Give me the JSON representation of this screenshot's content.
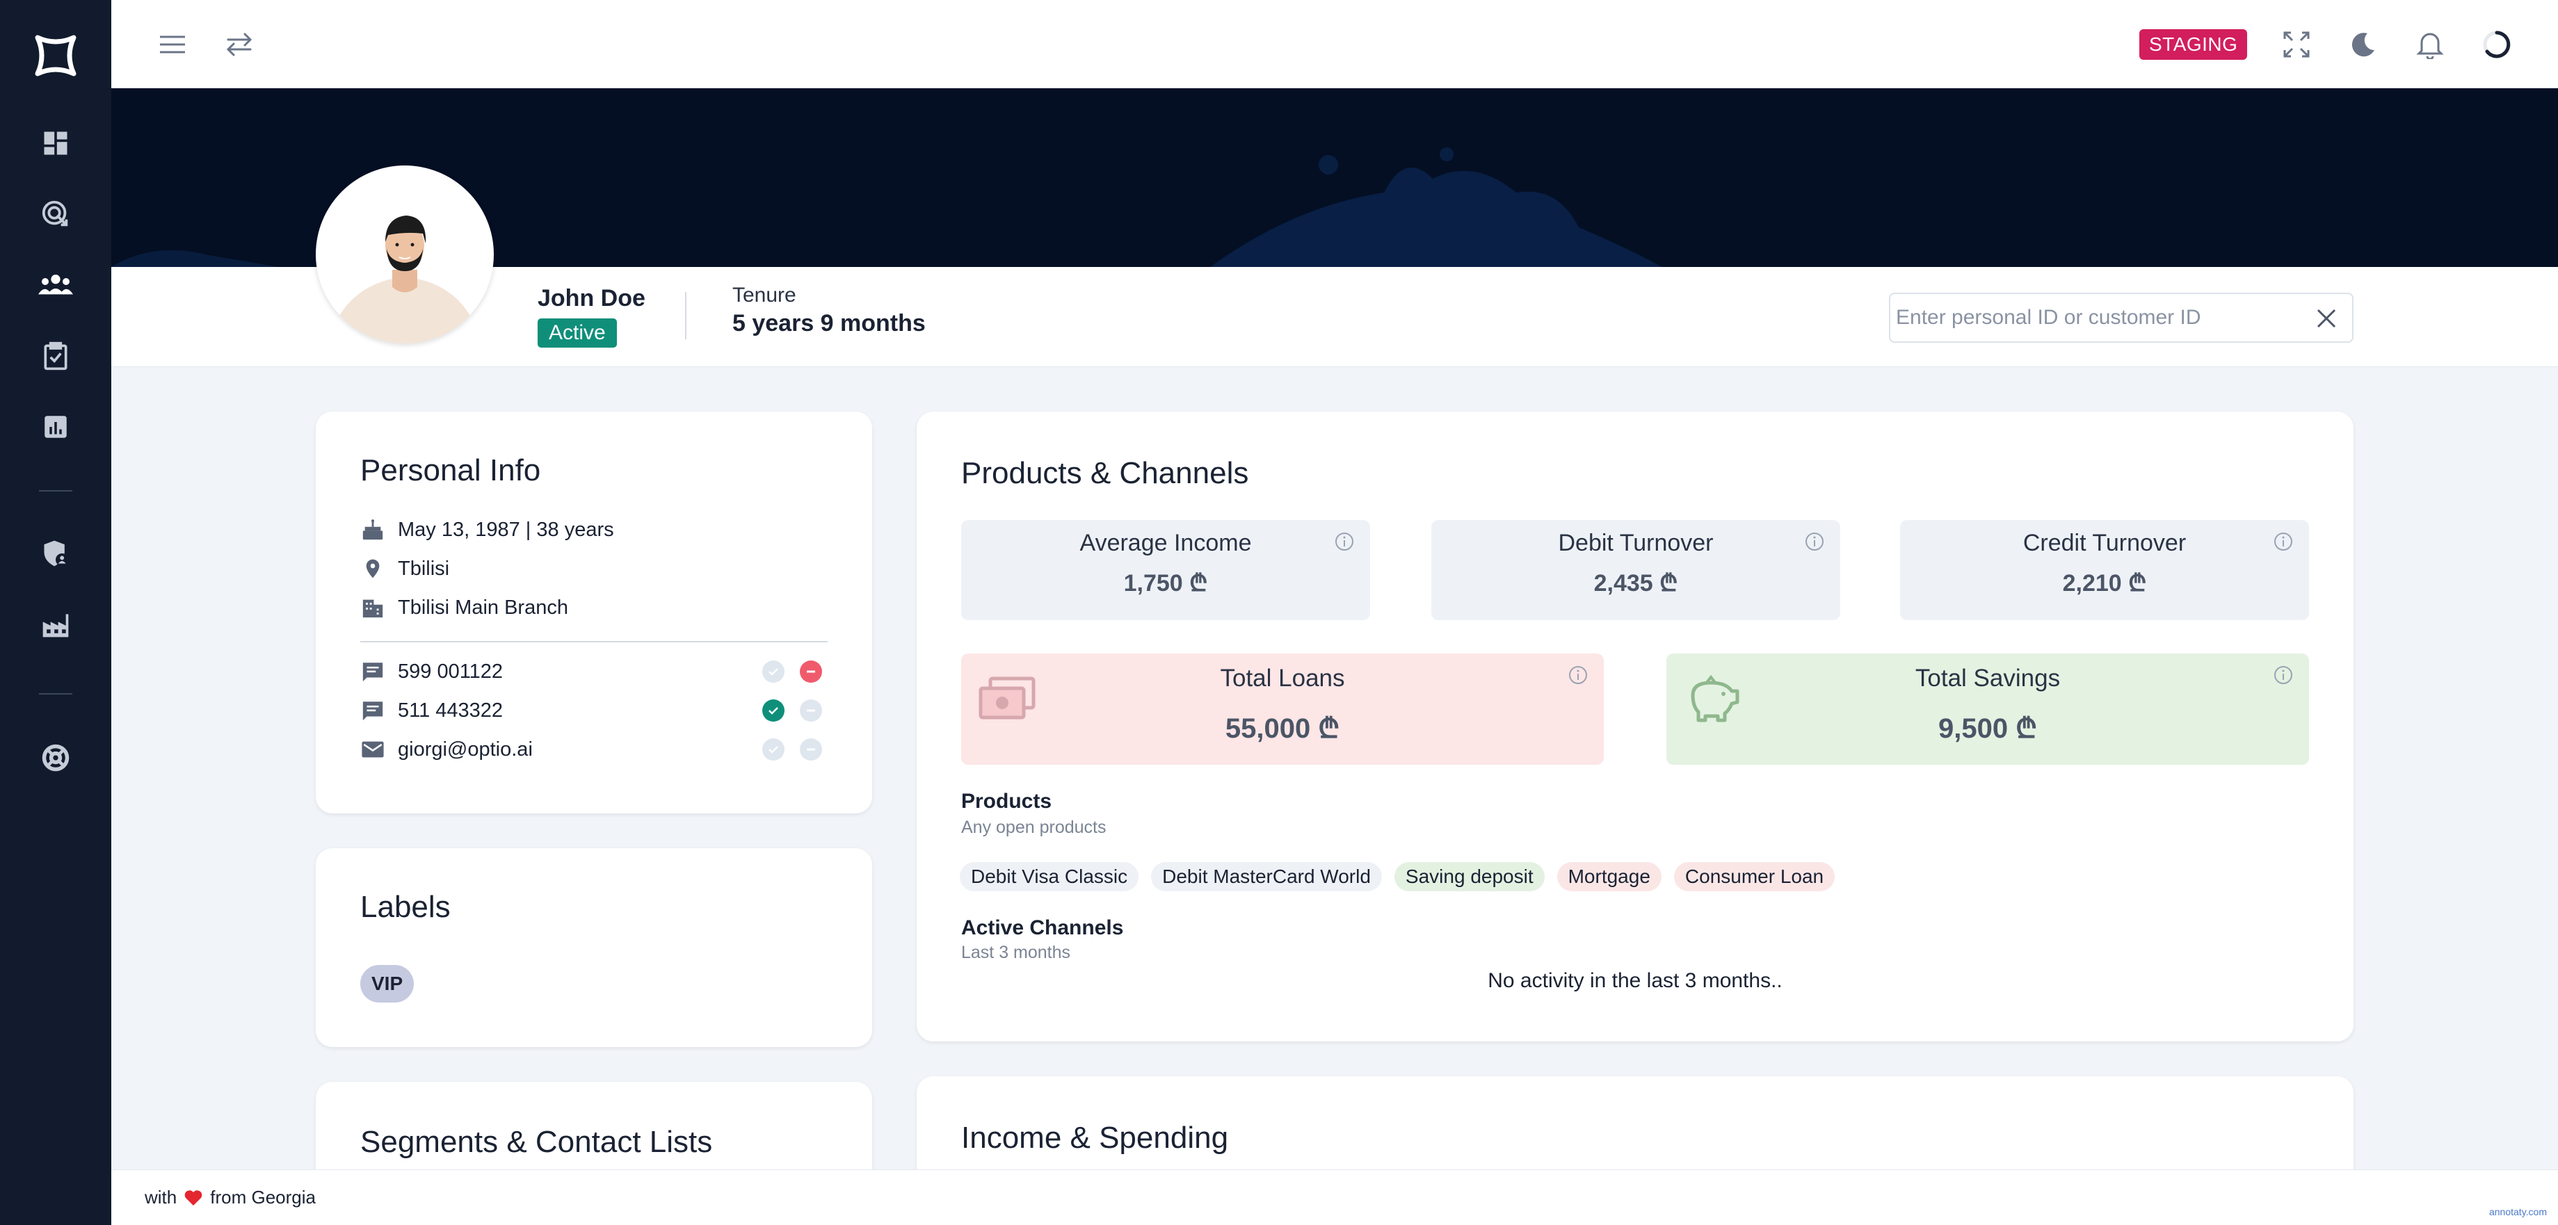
{
  "topbar": {
    "badge": "STAGING",
    "icons": [
      "menu-icon",
      "swap-icon",
      "fullscreen-icon",
      "moon-icon",
      "bell-icon",
      "loader-icon"
    ]
  },
  "sidebar": {
    "items": [
      "logo-icon",
      "dashboard-icon",
      "target-icon",
      "users-icon",
      "clipboard-check-icon",
      "bar-chart-icon",
      "shield-user-icon",
      "factory-icon",
      "lifebuoy-icon"
    ]
  },
  "profile": {
    "name": "John Doe",
    "status": "Active",
    "tenure_label": "Tenure",
    "tenure_value": "5 years 9 months"
  },
  "search": {
    "placeholder": "Enter personal ID or customer ID",
    "value": ""
  },
  "personal_info": {
    "title": "Personal Info",
    "birth": "May 13, 1987 | 38 years",
    "city": "Tbilisi",
    "branch": "Tbilisi Main Branch",
    "contacts": [
      {
        "type": "sms",
        "value": "599 001122",
        "verified": false,
        "blocked": true
      },
      {
        "type": "sms",
        "value": "511 443322",
        "verified": true,
        "blocked": false
      },
      {
        "type": "email",
        "value": "giorgi@optio.ai",
        "verified": false,
        "blocked": false
      }
    ]
  },
  "labels": {
    "title": "Labels",
    "items": [
      "VIP"
    ]
  },
  "segments": {
    "title": "Segments & Contact Lists"
  },
  "products_channels": {
    "title": "Products & Channels",
    "metrics": [
      {
        "label": "Average Income",
        "value": "1,750 ₾"
      },
      {
        "label": "Debit Turnover",
        "value": "2,435 ₾"
      },
      {
        "label": "Credit Turnover",
        "value": "2,210 ₾"
      }
    ],
    "total_loans": {
      "label": "Total Loans",
      "value": "55,000 ₾"
    },
    "total_savings": {
      "label": "Total Savings",
      "value": "9,500 ₾"
    },
    "products_head": "Products",
    "products_sub": "Any open products",
    "products": [
      {
        "name": "Debit Visa Classic",
        "color": "#eef1f5"
      },
      {
        "name": "Debit MasterCard World",
        "color": "#eef1f5"
      },
      {
        "name": "Saving deposit",
        "color": "#e3f1e1"
      },
      {
        "name": "Mortgage",
        "color": "#fbe6e6"
      },
      {
        "name": "Consumer Loan",
        "color": "#fbe6e6"
      }
    ],
    "channels_head": "Active Channels",
    "channels_sub": "Last 3 months",
    "channels_empty": "No activity in the last 3 months.."
  },
  "income_spending": {
    "title": "Income & Spending"
  },
  "footer": {
    "prefix": "with",
    "suffix": "from Georgia",
    "watermark": "annotaty.com"
  },
  "colors": {
    "sidebar": "#111b2d",
    "accent_active": "#0f8f7a",
    "staging": "#d21e5c",
    "loans_bg": "#fde6e6",
    "savings_bg": "#e4f2e2"
  }
}
